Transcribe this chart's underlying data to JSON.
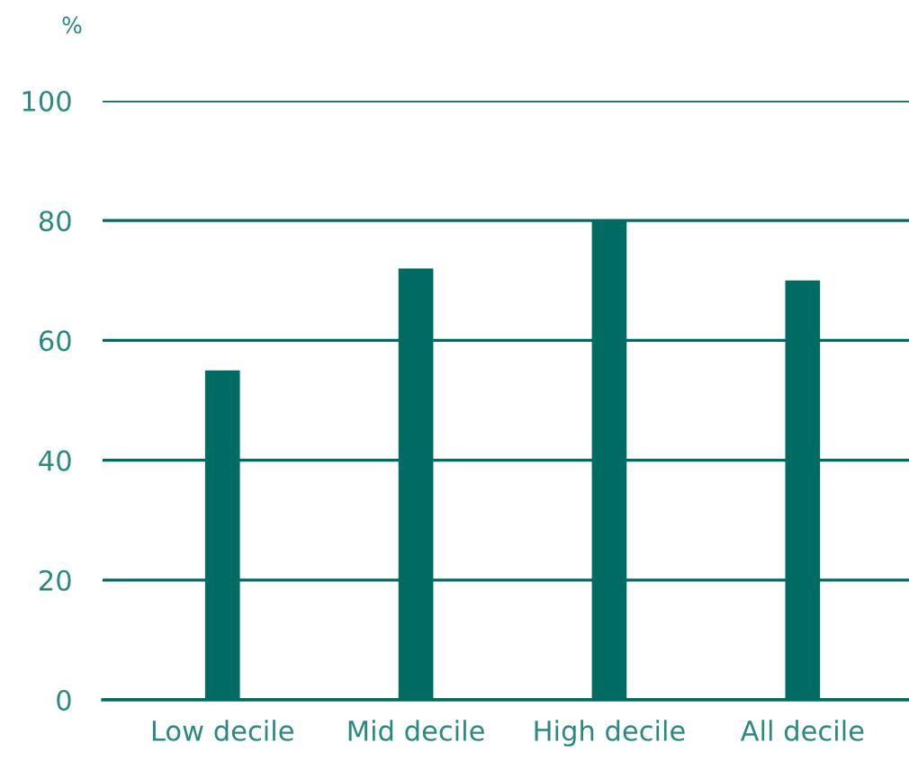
{
  "chart_data": {
    "type": "bar",
    "ylabel": "%",
    "categories": [
      "Low decile",
      "Mid decile",
      "High decile",
      "All decile"
    ],
    "values": [
      55,
      72,
      80,
      70
    ],
    "color": "#006b62",
    "ylim": [
      0,
      100
    ],
    "yticks": [
      0,
      20,
      40,
      60,
      80,
      100
    ],
    "grid": "y"
  }
}
